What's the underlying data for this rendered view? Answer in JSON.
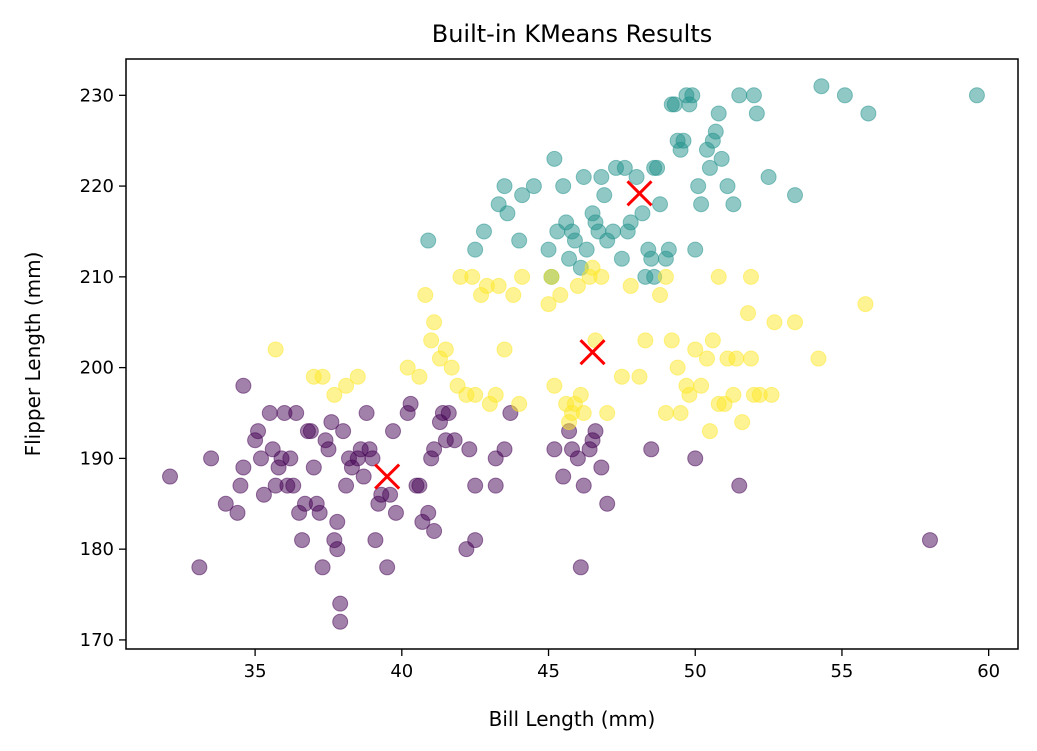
{
  "chart_data": {
    "type": "scatter",
    "title": "Built-in KMeans Results",
    "xlabel": "Bill Length (mm)",
    "ylabel": "Flipper Length (mm)",
    "xlim": [
      30.6,
      61.0
    ],
    "ylim": [
      169.0,
      234.0
    ],
    "xticks": [
      35,
      40,
      45,
      50,
      55,
      60
    ],
    "yticks": [
      170,
      180,
      190,
      200,
      210,
      220,
      230
    ],
    "grid": false,
    "legend": "none",
    "series": [
      {
        "color": "#440154",
        "points": [
          [
            32.1,
            188
          ],
          [
            33.1,
            178
          ],
          [
            33.5,
            190
          ],
          [
            34.0,
            185
          ],
          [
            34.4,
            184
          ],
          [
            34.5,
            187
          ],
          [
            34.6,
            189
          ],
          [
            34.6,
            198
          ],
          [
            35.0,
            192
          ],
          [
            35.1,
            193
          ],
          [
            35.2,
            190
          ],
          [
            35.3,
            186
          ],
          [
            35.5,
            195
          ],
          [
            35.6,
            191
          ],
          [
            35.7,
            187
          ],
          [
            35.8,
            189
          ],
          [
            35.9,
            190
          ],
          [
            36.0,
            195
          ],
          [
            36.1,
            187
          ],
          [
            36.2,
            190
          ],
          [
            36.3,
            187
          ],
          [
            36.4,
            195
          ],
          [
            36.5,
            184
          ],
          [
            36.6,
            181
          ],
          [
            36.7,
            185
          ],
          [
            36.8,
            193
          ],
          [
            36.9,
            193
          ],
          [
            37.0,
            189
          ],
          [
            37.1,
            185
          ],
          [
            37.2,
            184
          ],
          [
            37.3,
            178
          ],
          [
            37.4,
            192
          ],
          [
            37.5,
            191
          ],
          [
            37.6,
            194
          ],
          [
            37.7,
            181
          ],
          [
            37.8,
            183
          ],
          [
            37.8,
            180
          ],
          [
            37.9,
            174
          ],
          [
            37.9,
            172
          ],
          [
            38.0,
            193
          ],
          [
            38.1,
            187
          ],
          [
            38.2,
            190
          ],
          [
            38.3,
            189
          ],
          [
            38.5,
            190
          ],
          [
            38.6,
            191
          ],
          [
            38.7,
            188
          ],
          [
            38.8,
            195
          ],
          [
            38.9,
            191
          ],
          [
            39.0,
            190
          ],
          [
            39.1,
            181
          ],
          [
            39.2,
            185
          ],
          [
            39.3,
            186
          ],
          [
            39.5,
            178
          ],
          [
            39.6,
            186
          ],
          [
            39.7,
            193
          ],
          [
            39.8,
            184
          ],
          [
            40.2,
            195
          ],
          [
            40.3,
            196
          ],
          [
            40.5,
            187
          ],
          [
            40.6,
            187
          ],
          [
            40.7,
            183
          ],
          [
            40.9,
            184
          ],
          [
            41.0,
            190
          ],
          [
            41.1,
            191
          ],
          [
            41.1,
            182
          ],
          [
            41.3,
            194
          ],
          [
            41.4,
            195
          ],
          [
            41.5,
            192
          ],
          [
            41.6,
            195
          ],
          [
            41.8,
            192
          ],
          [
            42.2,
            180
          ],
          [
            42.3,
            191
          ],
          [
            42.5,
            187
          ],
          [
            42.5,
            181
          ],
          [
            43.2,
            187
          ],
          [
            43.2,
            190
          ],
          [
            43.5,
            191
          ],
          [
            43.7,
            195
          ],
          [
            45.2,
            191
          ],
          [
            45.5,
            188
          ],
          [
            45.7,
            193
          ],
          [
            45.8,
            191
          ],
          [
            46.0,
            190
          ],
          [
            46.1,
            178
          ],
          [
            46.2,
            187
          ],
          [
            46.4,
            191
          ],
          [
            46.5,
            192
          ],
          [
            46.6,
            193
          ],
          [
            46.8,
            189
          ],
          [
            47.0,
            185
          ],
          [
            48.5,
            191
          ],
          [
            50.0,
            190
          ],
          [
            51.5,
            187
          ],
          [
            58.0,
            181
          ]
        ]
      },
      {
        "color": "#21918c",
        "points": [
          [
            40.9,
            214
          ],
          [
            42.5,
            213
          ],
          [
            42.8,
            215
          ],
          [
            43.3,
            218
          ],
          [
            43.5,
            220
          ],
          [
            43.6,
            217
          ],
          [
            44.0,
            214
          ],
          [
            44.1,
            219
          ],
          [
            44.5,
            220
          ],
          [
            45.0,
            213
          ],
          [
            45.1,
            210
          ],
          [
            45.2,
            223
          ],
          [
            45.3,
            215
          ],
          [
            45.5,
            220
          ],
          [
            45.6,
            216
          ],
          [
            45.7,
            212
          ],
          [
            45.8,
            215
          ],
          [
            45.9,
            214
          ],
          [
            46.1,
            211
          ],
          [
            46.2,
            221
          ],
          [
            46.3,
            213
          ],
          [
            46.5,
            217
          ],
          [
            46.6,
            216
          ],
          [
            46.7,
            215
          ],
          [
            46.8,
            221
          ],
          [
            46.9,
            219
          ],
          [
            47.0,
            214
          ],
          [
            47.2,
            215
          ],
          [
            47.3,
            222
          ],
          [
            47.5,
            212
          ],
          [
            47.6,
            222
          ],
          [
            47.7,
            215
          ],
          [
            47.8,
            216
          ],
          [
            48.0,
            221
          ],
          [
            48.2,
            217
          ],
          [
            48.4,
            213
          ],
          [
            48.5,
            212
          ],
          [
            48.6,
            222
          ],
          [
            48.7,
            222
          ],
          [
            48.8,
            218
          ],
          [
            49.0,
            212
          ],
          [
            49.1,
            213
          ],
          [
            49.2,
            229
          ],
          [
            49.3,
            229
          ],
          [
            49.4,
            225
          ],
          [
            49.5,
            224
          ],
          [
            49.6,
            225
          ],
          [
            49.7,
            230
          ],
          [
            49.8,
            229
          ],
          [
            49.9,
            230
          ],
          [
            50.0,
            213
          ],
          [
            50.1,
            220
          ],
          [
            50.2,
            218
          ],
          [
            50.4,
            224
          ],
          [
            50.5,
            222
          ],
          [
            50.6,
            225
          ],
          [
            50.7,
            226
          ],
          [
            50.8,
            228
          ],
          [
            50.9,
            223
          ],
          [
            51.1,
            220
          ],
          [
            51.3,
            218
          ],
          [
            51.5,
            230
          ],
          [
            52.0,
            230
          ],
          [
            52.1,
            228
          ],
          [
            52.5,
            221
          ],
          [
            53.4,
            219
          ],
          [
            54.3,
            231
          ],
          [
            55.1,
            230
          ],
          [
            55.9,
            228
          ],
          [
            59.6,
            230
          ],
          [
            48.3,
            210
          ],
          [
            48.6,
            210
          ]
        ]
      },
      {
        "color": "#fde725",
        "points": [
          [
            35.7,
            202
          ],
          [
            37.0,
            199
          ],
          [
            37.3,
            199
          ],
          [
            37.7,
            197
          ],
          [
            38.1,
            198
          ],
          [
            38.5,
            199
          ],
          [
            40.2,
            200
          ],
          [
            40.6,
            199
          ],
          [
            40.8,
            208
          ],
          [
            41.0,
            203
          ],
          [
            41.1,
            205
          ],
          [
            41.3,
            201
          ],
          [
            41.5,
            202
          ],
          [
            41.7,
            200
          ],
          [
            41.9,
            198
          ],
          [
            42.0,
            210
          ],
          [
            42.2,
            197
          ],
          [
            42.4,
            210
          ],
          [
            42.5,
            197
          ],
          [
            42.7,
            208
          ],
          [
            42.9,
            209
          ],
          [
            43.0,
            196
          ],
          [
            43.2,
            197
          ],
          [
            43.3,
            209
          ],
          [
            43.5,
            202
          ],
          [
            43.8,
            208
          ],
          [
            44.1,
            210
          ],
          [
            44.0,
            196
          ],
          [
            45.0,
            207
          ],
          [
            45.1,
            210
          ],
          [
            45.2,
            198
          ],
          [
            45.4,
            208
          ],
          [
            45.6,
            196
          ],
          [
            45.7,
            194
          ],
          [
            45.8,
            195
          ],
          [
            45.9,
            196
          ],
          [
            46.0,
            209
          ],
          [
            46.1,
            197
          ],
          [
            46.2,
            195
          ],
          [
            46.4,
            210
          ],
          [
            46.5,
            211
          ],
          [
            46.6,
            203
          ],
          [
            46.8,
            210
          ],
          [
            47.0,
            195
          ],
          [
            47.5,
            199
          ],
          [
            47.8,
            209
          ],
          [
            48.1,
            199
          ],
          [
            48.3,
            203
          ],
          [
            48.8,
            208
          ],
          [
            49.0,
            195
          ],
          [
            49.2,
            203
          ],
          [
            49.4,
            200
          ],
          [
            49.5,
            195
          ],
          [
            49.7,
            198
          ],
          [
            49.8,
            197
          ],
          [
            50.0,
            202
          ],
          [
            50.2,
            198
          ],
          [
            50.4,
            201
          ],
          [
            50.5,
            193
          ],
          [
            50.6,
            203
          ],
          [
            50.8,
            196
          ],
          [
            51.0,
            196
          ],
          [
            51.1,
            201
          ],
          [
            51.3,
            197
          ],
          [
            51.4,
            201
          ],
          [
            51.6,
            194
          ],
          [
            51.9,
            201
          ],
          [
            52.0,
            197
          ],
          [
            52.2,
            197
          ],
          [
            52.6,
            197
          ],
          [
            52.7,
            205
          ],
          [
            53.4,
            205
          ],
          [
            54.2,
            201
          ],
          [
            55.8,
            207
          ],
          [
            50.8,
            210
          ],
          [
            51.9,
            210
          ],
          [
            51.8,
            206
          ],
          [
            49.0,
            210
          ]
        ]
      }
    ],
    "centroids": {
      "color": "#ff0000",
      "marker": "x",
      "points": [
        [
          39.5,
          188.0
        ],
        [
          46.5,
          201.7
        ],
        [
          48.1,
          219.2
        ]
      ]
    }
  }
}
